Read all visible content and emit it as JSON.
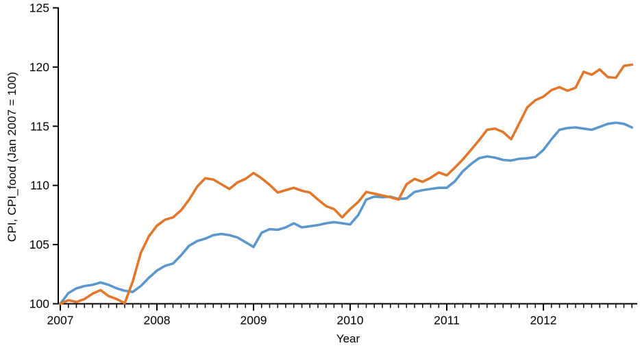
{
  "chart_data": {
    "type": "line",
    "title": "",
    "xlabel": "Year",
    "ylabel": "CPI, CPI_food (Jan 2007 = 100)",
    "x_unit": "month",
    "x_start": "2007-01",
    "x_end": "2012-12",
    "x_tick_labels": [
      "2007",
      "2008",
      "2009",
      "2010",
      "2011",
      "2012"
    ],
    "y_ticks": [
      100,
      105,
      110,
      115,
      120,
      125
    ],
    "ylim": [
      100,
      125
    ],
    "grid": false,
    "legend_position": "none",
    "axis_color": "#000000",
    "series": [
      {
        "name": "CPI",
        "color": "#5b97cb",
        "values": [
          100.0,
          100.9,
          101.3,
          101.5,
          101.6,
          101.8,
          101.6,
          101.3,
          101.1,
          101.0,
          101.5,
          102.2,
          102.8,
          103.2,
          103.4,
          104.1,
          104.9,
          105.3,
          105.5,
          105.8,
          105.9,
          105.8,
          105.6,
          105.2,
          104.8,
          106.0,
          106.3,
          106.25,
          106.45,
          106.8,
          106.45,
          106.55,
          106.65,
          106.8,
          106.9,
          106.8,
          106.7,
          107.5,
          108.8,
          109.05,
          109.0,
          109.05,
          108.85,
          108.9,
          109.45,
          109.6,
          109.7,
          109.8,
          109.8,
          110.35,
          111.2,
          111.8,
          112.3,
          112.45,
          112.35,
          112.15,
          112.1,
          112.25,
          112.3,
          112.4,
          113.0,
          113.9,
          114.7,
          114.85,
          114.9,
          114.8,
          114.7,
          114.95,
          115.2,
          115.3,
          115.2,
          114.9
        ]
      },
      {
        "name": "CPI_food",
        "color": "#e2772b",
        "values": [
          100.0,
          100.3,
          100.15,
          100.4,
          100.85,
          101.15,
          100.65,
          100.4,
          100.05,
          101.9,
          104.3,
          105.7,
          106.6,
          107.1,
          107.3,
          107.9,
          108.8,
          109.9,
          110.6,
          110.5,
          110.1,
          109.7,
          110.25,
          110.55,
          111.05,
          110.6,
          110.05,
          109.4,
          109.6,
          109.8,
          109.55,
          109.4,
          108.8,
          108.25,
          108.0,
          107.3,
          108.0,
          108.6,
          109.45,
          109.3,
          109.15,
          109.0,
          108.8,
          110.1,
          110.55,
          110.3,
          110.65,
          111.1,
          110.85,
          111.5,
          112.2,
          113.0,
          113.8,
          114.7,
          114.8,
          114.5,
          113.9,
          115.25,
          116.6,
          117.2,
          117.5,
          118.05,
          118.3,
          118.0,
          118.25,
          119.6,
          119.35,
          119.8,
          119.15,
          119.1,
          120.1,
          120.2
        ]
      }
    ]
  }
}
